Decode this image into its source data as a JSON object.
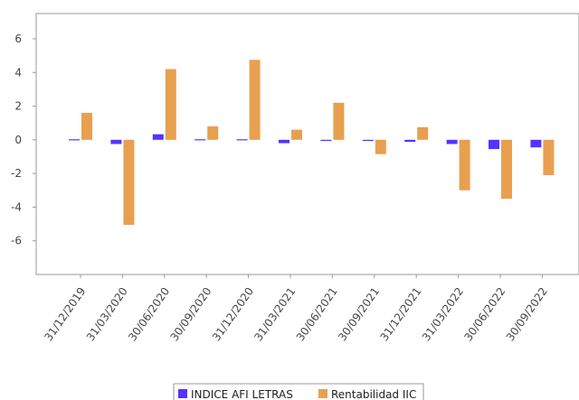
{
  "chart_data": {
    "type": "bar",
    "categories": [
      "31/12/2019",
      "31/03/2020",
      "30/06/2020",
      "30/09/2020",
      "31/12/2020",
      "31/03/2021",
      "30/06/2021",
      "30/09/2021",
      "31/12/2021",
      "31/03/2022",
      "30/06/2022",
      "30/09/2022"
    ],
    "series": [
      {
        "name": "INDICE AFI LETRAS",
        "color": "#5533ff",
        "values": [
          0.02,
          -0.25,
          0.33,
          0.0,
          0.03,
          -0.2,
          -0.07,
          -0.07,
          -0.12,
          -0.25,
          -0.55,
          -0.45
        ]
      },
      {
        "name": "Rentabilidad IIC",
        "color": "#e8a050",
        "values": [
          1.6,
          -5.05,
          4.2,
          0.8,
          4.75,
          0.6,
          2.2,
          -0.85,
          0.75,
          -3.0,
          -3.5,
          -2.1
        ]
      }
    ],
    "y_ticks": [
      "6",
      "4",
      "2",
      "0",
      "-2",
      "-4",
      "-6"
    ],
    "ylim": [
      -8,
      7.5
    ],
    "grid": false,
    "legend_position": "bottom-center"
  }
}
